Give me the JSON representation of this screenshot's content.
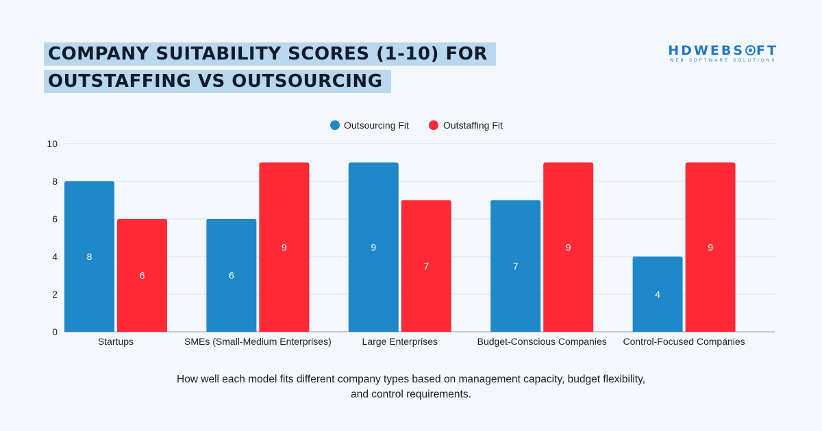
{
  "header": {
    "title_line1": "COMPANY SUITABILITY SCORES (1-10) FOR",
    "title_line2": "OUTSTAFFING VS OUTSOURCING"
  },
  "logo": {
    "text_before": "HDWEBS",
    "text_after": "FT",
    "tagline": "WEB SOFTWARE SOLUTIONS"
  },
  "caption": "How well each model fits different company types based on management capacity, budget flexibility, and control requirements.",
  "colors": {
    "outsourcing": "#1e88c9",
    "outstaffing": "#ff2a36",
    "grid": "#dcdfe3",
    "axis": "#9aa0a6",
    "text": "#222222"
  },
  "chart_data": {
    "type": "bar",
    "title": "COMPANY SUITABILITY SCORES (1-10) FOR OUTSTAFFING VS OUTSOURCING",
    "xlabel": "",
    "ylabel": "",
    "ylim": [
      0,
      10
    ],
    "yticks": [
      0,
      2,
      4,
      6,
      8,
      10
    ],
    "legend_position": "top-center",
    "categories": [
      "Startups",
      "SMEs (Small-Medium Enterprises)",
      "Large Enterprises",
      "Budget-Conscious Companies",
      "Control-Focused Companies"
    ],
    "series": [
      {
        "name": "Outsourcing Fit",
        "values": [
          8,
          6,
          9,
          7,
          4
        ]
      },
      {
        "name": "Outstaffing Fit",
        "values": [
          6,
          9,
          7,
          9,
          9
        ]
      }
    ]
  }
}
